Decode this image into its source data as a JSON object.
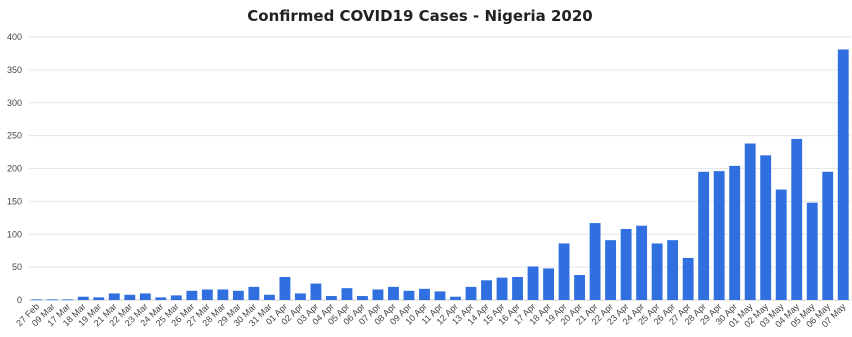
{
  "chart_data": {
    "type": "bar",
    "title": "Confirmed COVID19 Cases - Nigeria 2020",
    "xlabel": "",
    "ylabel": "",
    "ylim": [
      0,
      400
    ],
    "yticks": [
      0,
      50,
      100,
      150,
      200,
      250,
      300,
      350,
      400
    ],
    "grid": true,
    "bar_color": "#2f6fe0",
    "categories": [
      "27 Feb",
      "09 Mar",
      "17 Mar",
      "18 Mar",
      "19 Mar",
      "21 Mar",
      "22 Mar",
      "23 Mar",
      "24 Mar",
      "25 Mar",
      "26 Mar",
      "27 Mar",
      "28 Mar",
      "29 Mar",
      "30 Mar",
      "31 Mar",
      "01 Apr",
      "02 Apr",
      "03 Apr",
      "04 Apr",
      "05 Apr",
      "06 Apr",
      "07 Apr",
      "08 Apr",
      "09 Apr",
      "10 Apr",
      "11 Apr",
      "12 Apr",
      "13 Apr",
      "14 Apr",
      "15 Apr",
      "16 Apr",
      "17 Apr",
      "18 Apr",
      "19 Apr",
      "20 Apr",
      "21 Apr",
      "22 Apr",
      "23 Apr",
      "24 Apr",
      "25 Apr",
      "26 Apr",
      "27 Apr",
      "28 Apr",
      "29 Apr",
      "30 Apr",
      "01 May",
      "02 May",
      "03 May",
      "04 May",
      "05 May",
      "06 May",
      "07 May"
    ],
    "values": [
      1,
      1,
      1,
      5,
      4,
      10,
      8,
      10,
      4,
      7,
      14,
      16,
      16,
      14,
      20,
      8,
      35,
      10,
      25,
      6,
      18,
      6,
      16,
      20,
      14,
      17,
      13,
      5,
      20,
      30,
      34,
      35,
      51,
      48,
      86,
      38,
      117,
      91,
      108,
      113,
      86,
      91,
      64,
      195,
      196,
      204,
      238,
      220,
      168,
      245,
      148,
      195,
      381
    ]
  }
}
